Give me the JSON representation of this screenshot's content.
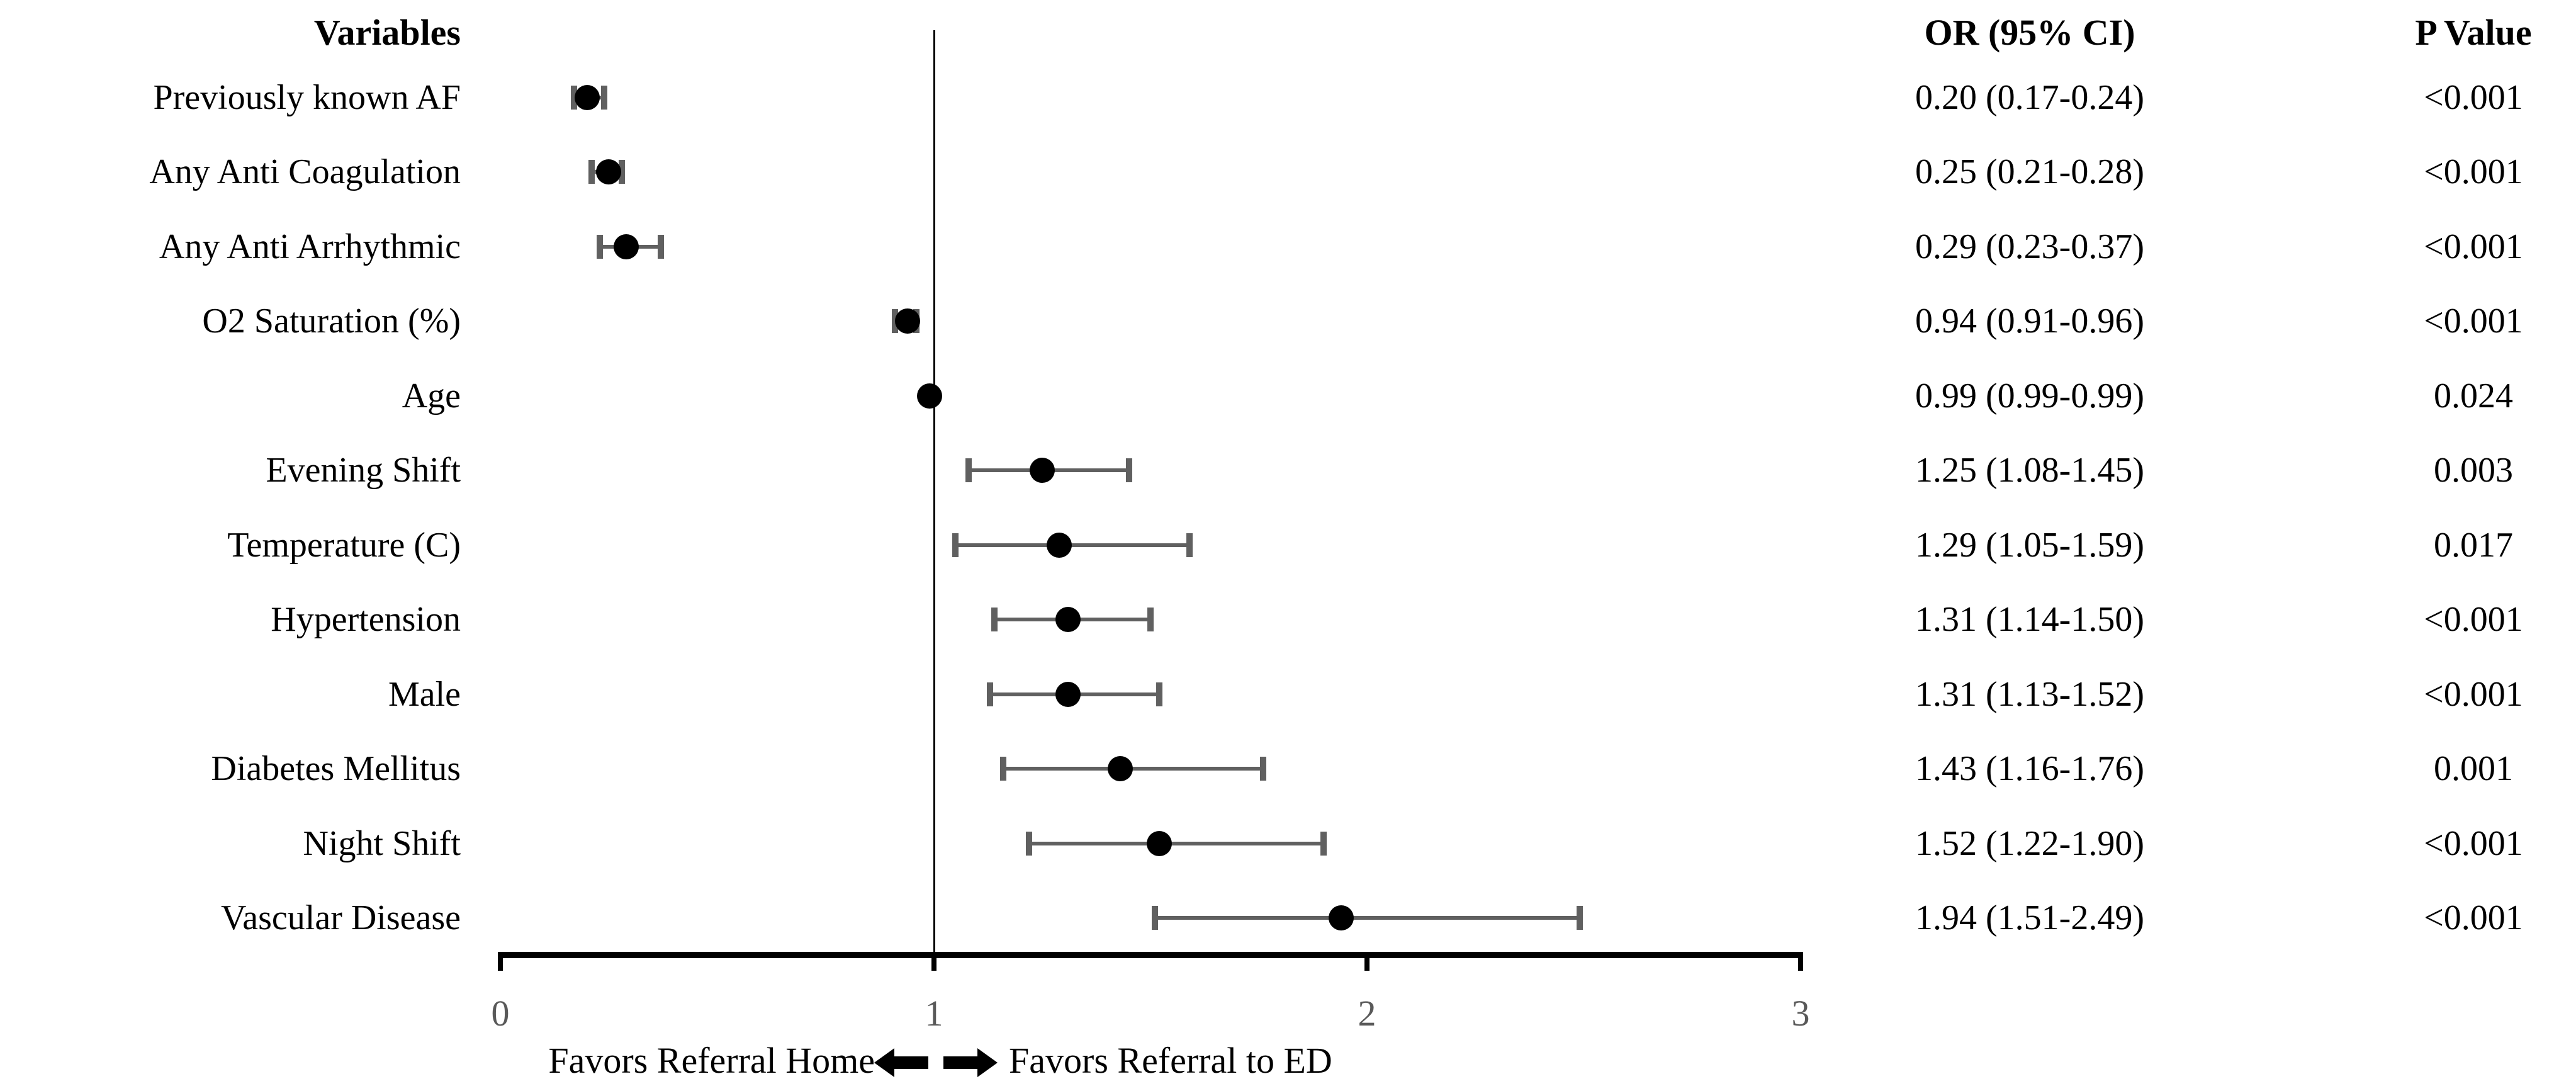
{
  "chart_data": {
    "type": "forest",
    "description": "Forest plot of odds ratios with 95% confidence intervals for referral decision",
    "columns": {
      "variables": "Variables",
      "or_ci": "OR (95% CI)",
      "p_value": "P Value"
    },
    "rows": [
      {
        "variable": "Previously known AF",
        "or": 0.2,
        "ci_low": 0.17,
        "ci_high": 0.24,
        "or_ci_text": "0.20 (0.17-0.24)",
        "p_text": "<0.001"
      },
      {
        "variable": "Any Anti Coagulation",
        "or": 0.25,
        "ci_low": 0.21,
        "ci_high": 0.28,
        "or_ci_text": "0.25 (0.21-0.28)",
        "p_text": "<0.001"
      },
      {
        "variable": "Any Anti Arrhythmic",
        "or": 0.29,
        "ci_low": 0.23,
        "ci_high": 0.37,
        "or_ci_text": "0.29 (0.23-0.37)",
        "p_text": "<0.001"
      },
      {
        "variable": "O2 Saturation (%)",
        "or": 0.94,
        "ci_low": 0.91,
        "ci_high": 0.96,
        "or_ci_text": "0.94 (0.91-0.96)",
        "p_text": "<0.001"
      },
      {
        "variable": "Age",
        "or": 0.99,
        "ci_low": 0.99,
        "ci_high": 0.99,
        "or_ci_text": "0.99 (0.99-0.99)",
        "p_text": "0.024"
      },
      {
        "variable": "Evening Shift",
        "or": 1.25,
        "ci_low": 1.08,
        "ci_high": 1.45,
        "or_ci_text": "1.25 (1.08-1.45)",
        "p_text": "0.003"
      },
      {
        "variable": "Temperature (C)",
        "or": 1.29,
        "ci_low": 1.05,
        "ci_high": 1.59,
        "or_ci_text": "1.29 (1.05-1.59)",
        "p_text": "0.017"
      },
      {
        "variable": "Hypertension",
        "or": 1.31,
        "ci_low": 1.14,
        "ci_high": 1.5,
        "or_ci_text": "1.31 (1.14-1.50)",
        "p_text": "<0.001"
      },
      {
        "variable": "Male",
        "or": 1.31,
        "ci_low": 1.13,
        "ci_high": 1.52,
        "or_ci_text": "1.31 (1.13-1.52)",
        "p_text": "<0.001"
      },
      {
        "variable": "Diabetes Mellitus",
        "or": 1.43,
        "ci_low": 1.16,
        "ci_high": 1.76,
        "or_ci_text": "1.43 (1.16-1.76)",
        "p_text": "0.001"
      },
      {
        "variable": "Night Shift",
        "or": 1.52,
        "ci_low": 1.22,
        "ci_high": 1.9,
        "or_ci_text": "1.52 (1.22-1.90)",
        "p_text": "<0.001"
      },
      {
        "variable": "Vascular Disease",
        "or": 1.94,
        "ci_low": 1.51,
        "ci_high": 2.49,
        "or_ci_text": "1.94 (1.51-2.49)",
        "p_text": "<0.001"
      }
    ],
    "x_axis": {
      "xlim": [
        0,
        3
      ],
      "ticks": [
        0,
        1,
        2,
        3
      ],
      "tick_labels": [
        "0",
        "1",
        "2",
        "3"
      ],
      "reference_line": 1,
      "grid": false
    },
    "footer": {
      "left_label": "Favors Referral Home",
      "right_label": "Favors Referral to ED",
      "left_arrow_icon": "left-block-arrow",
      "right_arrow_icon": "right-block-arrow"
    },
    "legend": null,
    "title": "",
    "colors": {
      "marker": "#000000",
      "whisker": "#606060",
      "axis": "#000000",
      "reference_line": "#000000",
      "tick_label": "#595959",
      "text": "#000000",
      "background": "#ffffff"
    }
  }
}
